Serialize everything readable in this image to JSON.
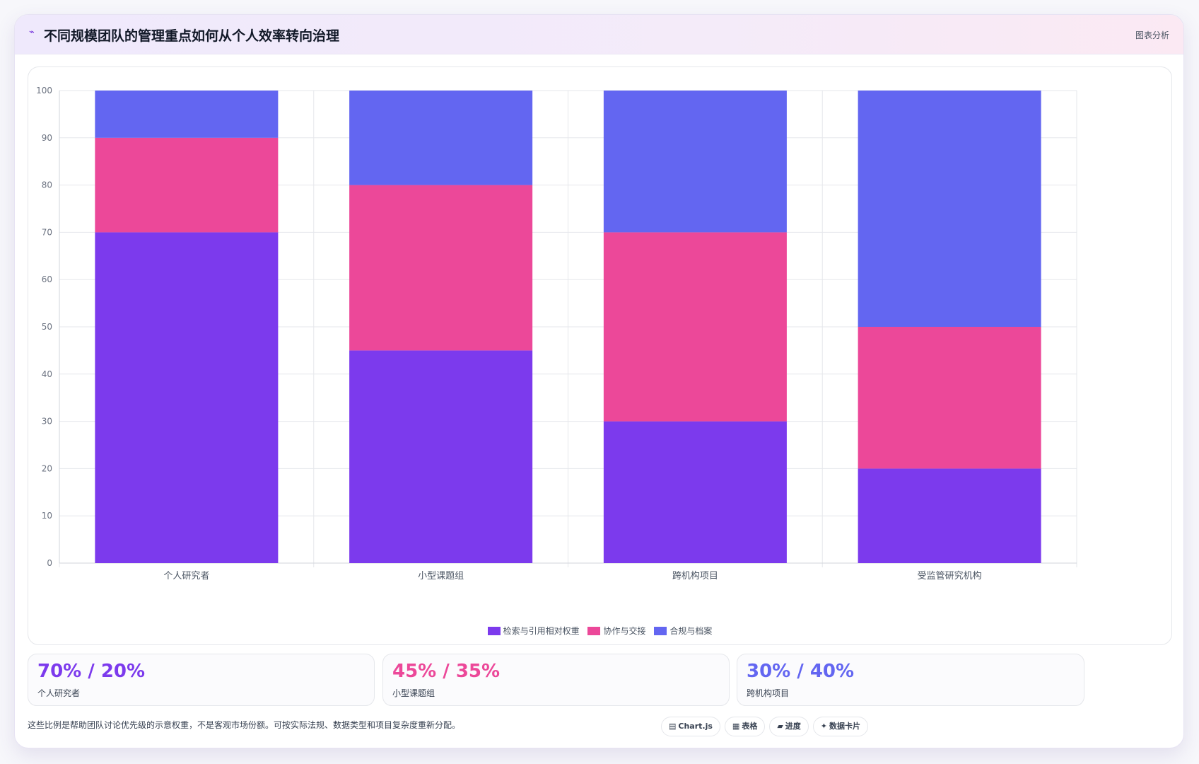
{
  "header": {
    "icon": "trend-icon",
    "icon_glyph": "⌁",
    "title": "不同规模团队的管理重点如何从个人效率转向治理",
    "badge": "图表分析"
  },
  "chart_data": {
    "type": "bar",
    "stacked": true,
    "categories": [
      "个人研究者",
      "小型课题组",
      "跨机构项目",
      "受监管研究机构"
    ],
    "series": [
      {
        "name": "检索与引用相对权重",
        "color": "#7c3aed",
        "values": [
          70,
          45,
          30,
          20
        ]
      },
      {
        "name": "协作与交接",
        "color": "#ec4899",
        "values": [
          20,
          35,
          40,
          30
        ]
      },
      {
        "name": "合规与档案",
        "color": "#6366f1",
        "values": [
          10,
          20,
          30,
          50
        ]
      }
    ],
    "ylim": [
      0,
      100
    ],
    "yticks": [
      0,
      10,
      20,
      30,
      40,
      50,
      60,
      70,
      80,
      90,
      100
    ],
    "grid": true,
    "legend_position": "bottom"
  },
  "stats": [
    {
      "value": "70% / 20%",
      "label": "个人研究者",
      "color": "#7c3aed"
    },
    {
      "value": "45% / 35%",
      "label": "小型课题组",
      "color": "#ec4899"
    },
    {
      "value": "30% / 40%",
      "label": "跨机构项目",
      "color": "#6366f1"
    }
  ],
  "footnote": "这些比例是帮助团队讨论优先级的示意权重，不是客观市场份额。可按实际法规、数据类型和项目复杂度重新分配。",
  "chips": [
    {
      "icon": "chart-icon",
      "glyph": "▤",
      "label": "Chart.js"
    },
    {
      "icon": "table-icon",
      "glyph": "▦",
      "label": "表格"
    },
    {
      "icon": "progress-icon",
      "glyph": "▰",
      "label": "进度"
    },
    {
      "icon": "sparkle-icon",
      "glyph": "✦",
      "label": "数据卡片"
    }
  ]
}
